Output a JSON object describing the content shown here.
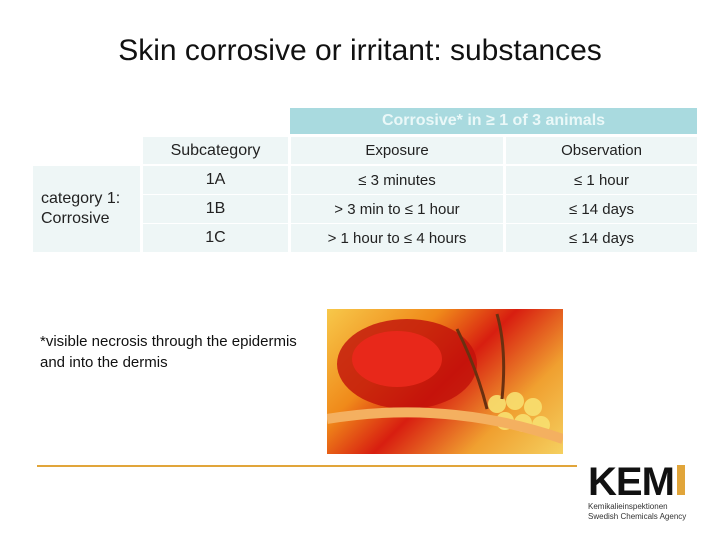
{
  "title": "Skin corrosive or irritant: substances",
  "table": {
    "group_header": "Corrosive* in ≥ 1 of 3 animals",
    "headers": [
      "Subcategory",
      "Exposure",
      "Observation"
    ],
    "category": "category 1: Corrosive",
    "rows": [
      {
        "sub": "1A",
        "exposure": "≤ 3 minutes",
        "observation": "≤ 1 hour"
      },
      {
        "sub": "1B",
        "exposure": "> 3 min to ≤ 1 hour",
        "observation": "≤ 14 days"
      },
      {
        "sub": "1C",
        "exposure": "> 1 hour to ≤ 4 hours",
        "observation": "≤ 14 days"
      }
    ]
  },
  "footnote": "*visible necrosis through the epidermis and into the dermis",
  "logo": {
    "name": "KEM",
    "line1": "Kemikalieinspektionen",
    "line2": "Swedish Chemicals Agency",
    "accent": "#e1a53a"
  }
}
